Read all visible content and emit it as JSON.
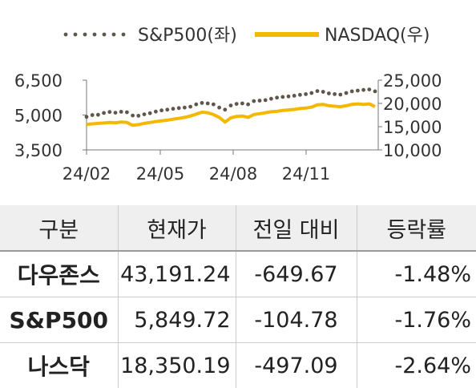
{
  "chart_data": {
    "type": "line",
    "legend": {
      "position": "top",
      "items": [
        {
          "label": "S&P500(좌)",
          "style": "dotted",
          "color": "#5f564c",
          "axis": "left"
        },
        {
          "label": "NASDAQ(우)",
          "style": "solid",
          "color": "#f5b800",
          "axis": "right"
        }
      ]
    },
    "x_tick_labels": [
      "24/02",
      "24/05",
      "24/08",
      "24/11"
    ],
    "y_left": {
      "ticks": [
        "6,500",
        "5,000",
        "3,500"
      ],
      "range": [
        3500,
        6500
      ]
    },
    "y_right": {
      "ticks": [
        "25,000",
        "20,000",
        "15,000",
        "10,000"
      ],
      "range": [
        10000,
        25000
      ]
    },
    "grid": false,
    "series": [
      {
        "name": "S&P500(좌)",
        "axis": "left",
        "values": [
          4920,
          5000,
          5010,
          5090,
          5130,
          5100,
          5140,
          5120,
          4980,
          4970,
          5030,
          5080,
          5150,
          5200,
          5230,
          5270,
          5300,
          5320,
          5360,
          5460,
          5520,
          5500,
          5460,
          5320,
          5230,
          5410,
          5480,
          5500,
          5460,
          5600,
          5620,
          5640,
          5700,
          5750,
          5780,
          5800,
          5830,
          5870,
          5900,
          5950,
          6030,
          6000,
          5930,
          5900,
          5880,
          5950,
          6020,
          6050,
          6080,
          6100,
          6020
        ]
      },
      {
        "name": "NASDAQ(우)",
        "axis": "right",
        "values": [
          15500,
          15600,
          15700,
          15800,
          15900,
          15850,
          16000,
          15900,
          15300,
          15450,
          15700,
          15900,
          16100,
          16250,
          16400,
          16600,
          16800,
          17000,
          17300,
          17700,
          18100,
          18000,
          17600,
          17000,
          16000,
          16900,
          17200,
          17300,
          17000,
          17600,
          17800,
          18000,
          18200,
          18300,
          18500,
          18600,
          18700,
          18900,
          19000,
          19200,
          19700,
          19800,
          19500,
          19400,
          19300,
          19500,
          19800,
          19900,
          19800,
          19900,
          19300
        ]
      }
    ]
  },
  "table": {
    "headers": [
      "구분",
      "현재가",
      "전일 대비",
      "등락률"
    ],
    "rows": [
      {
        "name": "다우존스",
        "price": "43,191.24",
        "change": "-649.67",
        "rate": "-1.48%"
      },
      {
        "name": "S&P500",
        "price": "5,849.72",
        "change": "-104.78",
        "rate": "-1.76%"
      },
      {
        "name": "나스닥",
        "price": "18,350.19",
        "change": "-497.09",
        "rate": "-2.64%"
      }
    ]
  }
}
